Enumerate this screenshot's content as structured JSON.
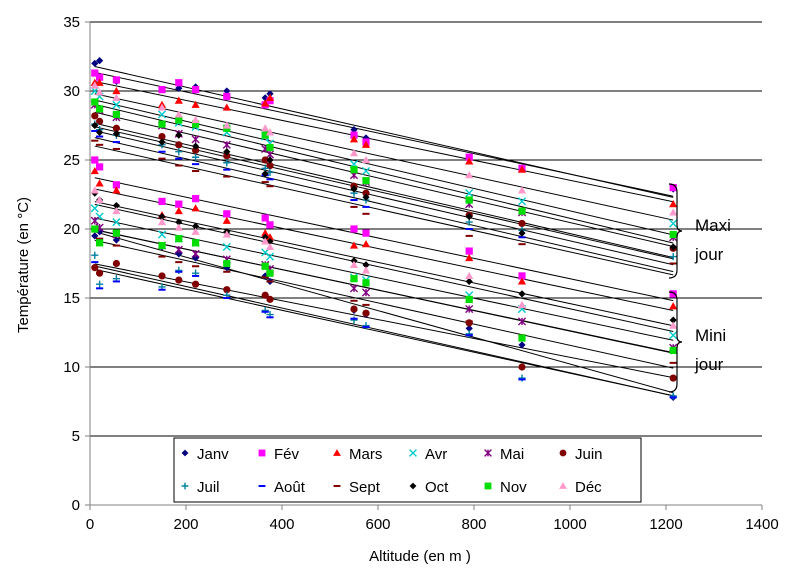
{
  "chart_data": {
    "type": "scatter",
    "xlabel": "Altitude (en m )",
    "ylabel": "Température (en °C)",
    "xlim": [
      0,
      1400
    ],
    "ylim": [
      0,
      35
    ],
    "x_ticks": [
      "0",
      "200",
      "400",
      "600",
      "800",
      "1000",
      "1200",
      "1400"
    ],
    "y_ticks": [
      "0",
      "5",
      "10",
      "15",
      "20",
      "25",
      "30",
      "35"
    ],
    "grid": "horizontal",
    "legend_position": "bottom-inside",
    "annotations": [
      {
        "lines": [
          "Maxi",
          "jour"
        ]
      },
      {
        "lines": [
          "Mini",
          "jour"
        ]
      }
    ],
    "x": [
      10,
      20,
      55,
      150,
      185,
      220,
      285,
      365,
      375,
      550,
      575,
      790,
      900,
      1215
    ],
    "series": [
      {
        "name": "Janv",
        "marker": "diamond",
        "color": "#000080",
        "max": [
          32.0,
          32.2,
          30.7,
          30.1,
          30.2,
          30.3,
          30.0,
          29.5,
          29.8,
          27.2,
          26.6,
          25.2,
          24.4,
          22.9
        ],
        "min": [
          19.5,
          19.8,
          19.2,
          18.7,
          18.2,
          17.9,
          17.2,
          16.6,
          16.2,
          14.1,
          13.8,
          12.8,
          11.6,
          7.8
        ]
      },
      {
        "name": "Fév",
        "marker": "square",
        "color": "#ff00ff",
        "max": [
          31.3,
          31.0,
          30.8,
          30.1,
          30.6,
          30.1,
          29.6,
          29.0,
          29.3,
          26.8,
          26.3,
          25.2,
          24.4,
          23.0
        ],
        "min": [
          25.0,
          24.5,
          23.2,
          22.0,
          21.8,
          22.2,
          21.1,
          20.8,
          20.3,
          20.0,
          19.7,
          18.4,
          16.6,
          15.3
        ]
      },
      {
        "name": "Mars",
        "marker": "triangle",
        "color": "#ff0000",
        "max": [
          30.6,
          30.6,
          30.0,
          29.0,
          29.3,
          29.0,
          28.8,
          29.1,
          29.5,
          26.5,
          26.1,
          24.9,
          24.3,
          21.8
        ],
        "min": [
          24.2,
          23.3,
          22.8,
          21.0,
          21.3,
          21.5,
          20.6,
          19.7,
          19.4,
          18.8,
          18.9,
          17.9,
          16.2,
          14.4
        ]
      },
      {
        "name": "Avr",
        "marker": "x",
        "color": "#00cccc",
        "max": [
          30.0,
          29.6,
          29.0,
          28.3,
          27.7,
          27.4,
          27.0,
          26.7,
          26.2,
          24.7,
          24.2,
          22.6,
          22.0,
          20.4
        ],
        "min": [
          21.5,
          20.9,
          20.5,
          19.6,
          19.3,
          19.0,
          18.7,
          18.3,
          18.0,
          16.5,
          16.3,
          15.2,
          14.2,
          12.3
        ]
      },
      {
        "name": "Mai",
        "marker": "star",
        "color": "#800080",
        "max": [
          29.0,
          28.6,
          28.1,
          27.5,
          26.9,
          26.5,
          26.1,
          25.8,
          25.4,
          23.9,
          23.4,
          21.8,
          21.2,
          19.4
        ],
        "min": [
          20.6,
          20.1,
          19.6,
          18.8,
          18.5,
          18.2,
          17.8,
          17.4,
          17.1,
          15.7,
          15.4,
          14.2,
          13.3,
          11.4
        ]
      },
      {
        "name": "Juin",
        "marker": "circle",
        "color": "#800000",
        "max": [
          28.2,
          27.8,
          27.3,
          26.7,
          26.1,
          25.7,
          25.3,
          25.0,
          24.6,
          23.1,
          22.6,
          21.0,
          20.4,
          18.6
        ],
        "min": [
          17.2,
          16.8,
          17.5,
          16.6,
          16.3,
          16.0,
          15.6,
          15.2,
          14.9,
          14.2,
          13.9,
          13.2,
          10.0,
          9.2
        ]
      },
      {
        "name": "Juil",
        "marker": "plus",
        "color": "#0080a0",
        "max": [
          27.6,
          27.2,
          26.8,
          26.1,
          25.6,
          25.2,
          24.8,
          24.4,
          24.1,
          22.6,
          22.1,
          20.5,
          19.9,
          18.0
        ],
        "min": [
          18.1,
          16.0,
          16.4,
          15.8,
          17.0,
          16.8,
          15.2,
          14.1,
          13.8,
          13.4,
          13.0,
          12.4,
          9.2,
          7.9
        ]
      },
      {
        "name": "Août",
        "marker": "dash",
        "color": "#0000ff",
        "max": [
          27.1,
          26.7,
          26.3,
          25.6,
          25.1,
          24.7,
          24.3,
          23.9,
          23.6,
          22.1,
          21.6,
          20.0,
          19.4,
          17.5
        ],
        "min": [
          17.6,
          15.7,
          16.2,
          15.6,
          16.9,
          16.6,
          15.0,
          14.0,
          13.6,
          13.5,
          12.9,
          12.3,
          9.1,
          7.8
        ]
      },
      {
        "name": "Sept",
        "marker": "dash",
        "color": "#800000",
        "max": [
          26.4,
          26.1,
          25.8,
          25.1,
          24.6,
          24.2,
          23.8,
          23.4,
          23.1,
          21.6,
          21.1,
          19.5,
          18.9,
          17.5
        ],
        "min": [
          20.0,
          19.3,
          18.8,
          18.0,
          17.6,
          17.3,
          16.9,
          16.5,
          16.2,
          14.8,
          14.5,
          13.3,
          12.3,
          10.3
        ]
      },
      {
        "name": "Oct",
        "marker": "diamond",
        "color": "#000000",
        "max": [
          27.5,
          27.0,
          26.9,
          26.3,
          26.8,
          26.0,
          25.6,
          24.0,
          25.0,
          22.9,
          22.3,
          20.9,
          19.7,
          18.7
        ],
        "min": [
          22.6,
          22.1,
          21.7,
          20.9,
          20.5,
          20.2,
          19.8,
          19.4,
          19.1,
          17.7,
          17.4,
          16.2,
          15.3,
          13.4
        ]
      },
      {
        "name": "Nov",
        "marker": "square",
        "color": "#00dd00",
        "max": [
          29.2,
          28.7,
          28.3,
          27.6,
          27.9,
          27.6,
          27.3,
          26.8,
          25.9,
          24.3,
          23.5,
          22.1,
          21.3,
          19.6
        ],
        "min": [
          20.0,
          19.0,
          19.7,
          18.8,
          19.3,
          19.0,
          17.5,
          17.3,
          16.8,
          16.4,
          16.1,
          14.9,
          12.1,
          11.2
        ]
      },
      {
        "name": "Déc",
        "marker": "triangle",
        "color": "#ff99cc",
        "max": [
          30.4,
          29.9,
          29.5,
          28.8,
          28.3,
          27.9,
          27.5,
          27.3,
          27.0,
          25.5,
          25.0,
          23.9,
          22.8,
          21.2
        ],
        "min": [
          22.8,
          22.1,
          21.3,
          20.5,
          20.1,
          19.8,
          19.6,
          19.1,
          18.7,
          17.4,
          17.0,
          16.6,
          14.5,
          13.0
        ]
      }
    ]
  }
}
